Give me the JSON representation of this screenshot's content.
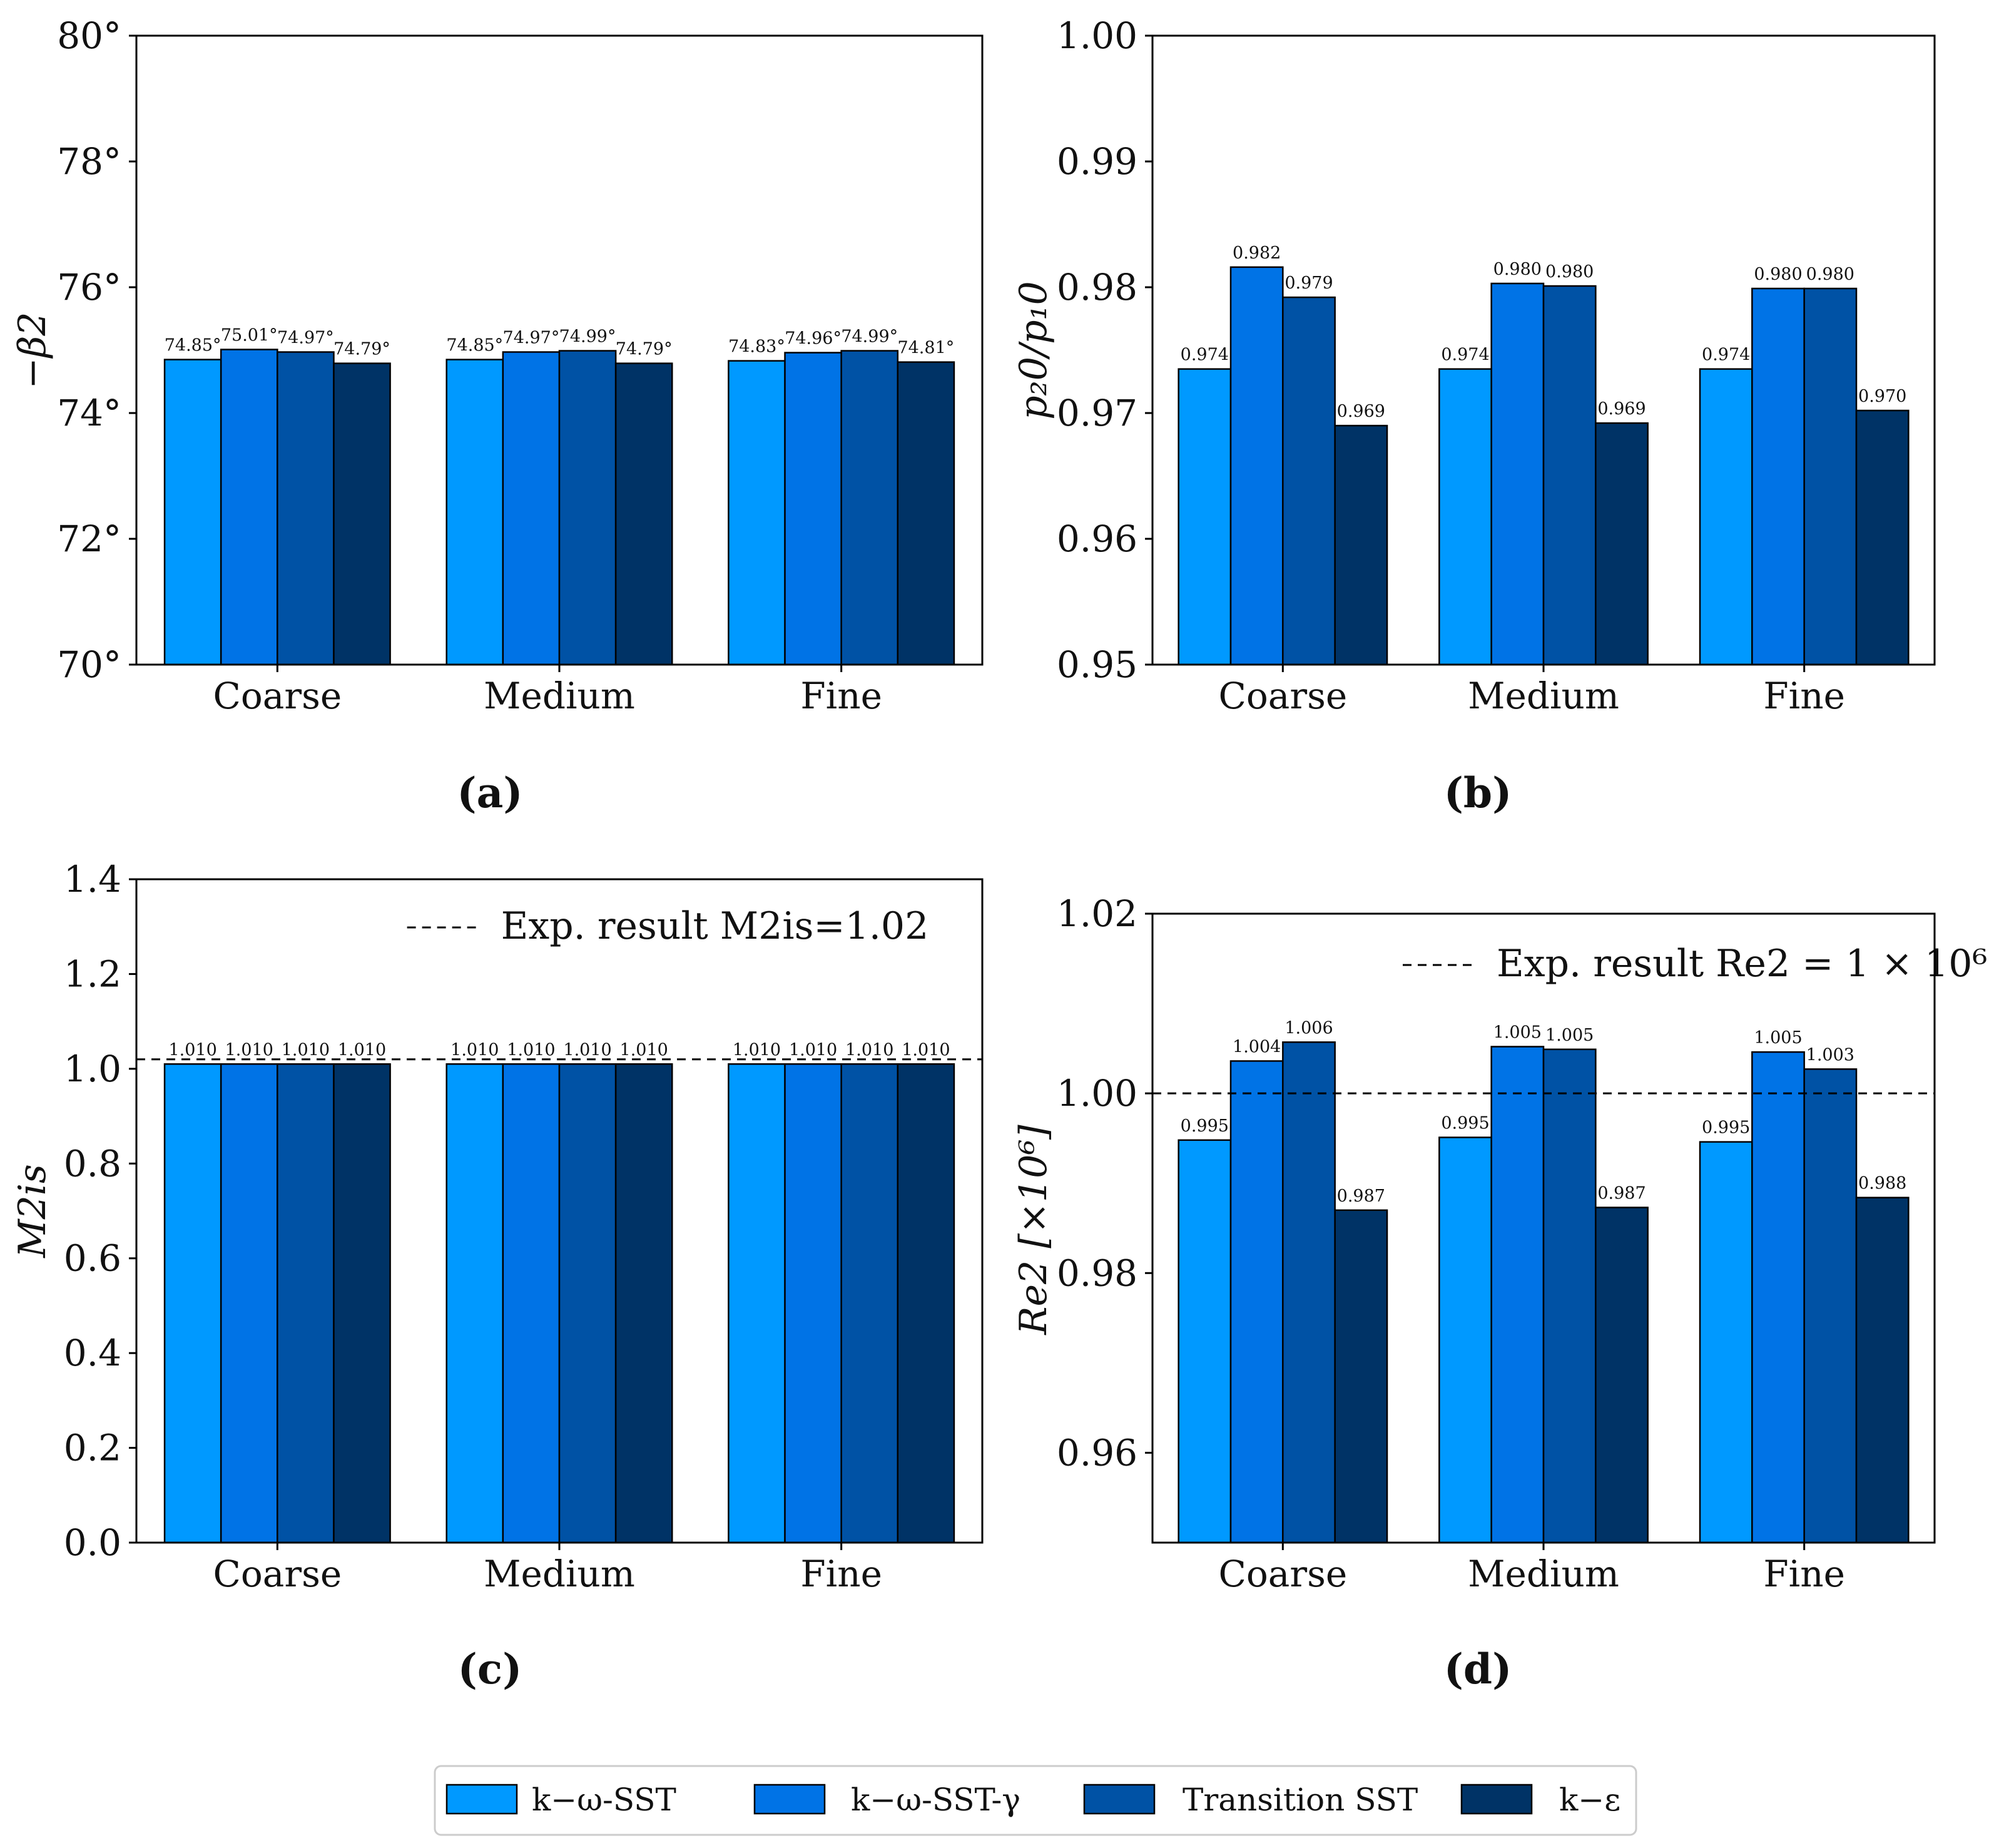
{
  "colors": [
    "#0099ff",
    "#0073e6",
    "#0052a5",
    "#003366"
  ],
  "legend": {
    "entries": [
      "k−ω-SST",
      "k−ω-SST-γ",
      "Transition SST",
      "k−ε"
    ]
  },
  "chart_data": [
    {
      "id": "a",
      "type": "bar",
      "sublabel": "(a)",
      "ylabel": "−β2",
      "categories": [
        "Coarse",
        "Medium",
        "Fine"
      ],
      "ylim": [
        70,
        80
      ],
      "yticks": [
        70,
        72,
        74,
        76,
        78,
        80
      ],
      "ytick_labels": [
        "70°",
        "72°",
        "74°",
        "76°",
        "78°",
        "80°"
      ],
      "series": [
        {
          "name": "k−ω-SST",
          "values": [
            74.85,
            74.85,
            74.83
          ],
          "labels": [
            "74.85°",
            "74.85°",
            "74.83°"
          ]
        },
        {
          "name": "k−ω-SST-γ",
          "values": [
            75.01,
            74.97,
            74.96
          ],
          "labels": [
            "75.01°",
            "74.97°",
            "74.96°"
          ]
        },
        {
          "name": "Transition SST",
          "values": [
            74.97,
            74.99,
            74.99
          ],
          "labels": [
            "74.97°",
            "74.99°",
            "74.99°"
          ]
        },
        {
          "name": "k−ε",
          "values": [
            74.79,
            74.79,
            74.81
          ],
          "labels": [
            "74.79°",
            "74.79°",
            "74.81°"
          ]
        }
      ]
    },
    {
      "id": "b",
      "type": "bar",
      "sublabel": "(b)",
      "ylabel": "p₂0/p₁0",
      "categories": [
        "Coarse",
        "Medium",
        "Fine"
      ],
      "ylim": [
        0.95,
        1.0
      ],
      "yticks": [
        0.95,
        0.96,
        0.97,
        0.98,
        0.99,
        1.0
      ],
      "ytick_labels": [
        "0.95",
        "0.96",
        "0.97",
        "0.98",
        "0.99",
        "1.00"
      ],
      "series": [
        {
          "name": "k−ω-SST",
          "values": [
            0.9735,
            0.9735,
            0.9735
          ],
          "labels": [
            "0.974",
            "0.974",
            "0.974"
          ]
        },
        {
          "name": "k−ω-SST-γ",
          "values": [
            0.9816,
            0.9803,
            0.9799
          ],
          "labels": [
            "0.982",
            "0.980",
            "0.980"
          ]
        },
        {
          "name": "Transition SST",
          "values": [
            0.9792,
            0.9801,
            0.9799
          ],
          "labels": [
            "0.979",
            "0.980",
            "0.980"
          ]
        },
        {
          "name": "k−ε",
          "values": [
            0.969,
            0.9692,
            0.9702
          ],
          "labels": [
            "0.969",
            "0.969",
            "0.970"
          ]
        }
      ]
    },
    {
      "id": "c",
      "type": "bar",
      "sublabel": "(c)",
      "ylabel": "M2is",
      "categories": [
        "Coarse",
        "Medium",
        "Fine"
      ],
      "ylim": [
        0.0,
        1.4
      ],
      "yticks": [
        0.0,
        0.2,
        0.4,
        0.6,
        0.8,
        1.0,
        1.2,
        1.4
      ],
      "ytick_labels": [
        "0.0",
        "0.2",
        "0.4",
        "0.6",
        "0.8",
        "1.0",
        "1.2",
        "1.4"
      ],
      "reference": {
        "value": 1.02,
        "label": "Exp. result M2is=1.02"
      },
      "series": [
        {
          "name": "k−ω-SST",
          "values": [
            1.01,
            1.01,
            1.01
          ],
          "labels": [
            "1.010",
            "1.010",
            "1.010"
          ]
        },
        {
          "name": "k−ω-SST-γ",
          "values": [
            1.01,
            1.01,
            1.01
          ],
          "labels": [
            "1.010",
            "1.010",
            "1.010"
          ]
        },
        {
          "name": "Transition SST",
          "values": [
            1.01,
            1.01,
            1.01
          ],
          "labels": [
            "1.010",
            "1.010",
            "1.010"
          ]
        },
        {
          "name": "k−ε",
          "values": [
            1.01,
            1.01,
            1.01
          ],
          "labels": [
            "1.010",
            "1.010",
            "1.010"
          ]
        }
      ]
    },
    {
      "id": "d",
      "type": "bar",
      "sublabel": "(d)",
      "ylabel": "Re2 [×10⁶]",
      "categories": [
        "Coarse",
        "Medium",
        "Fine"
      ],
      "ylim": [
        0.95,
        1.02
      ],
      "yticks": [
        0.96,
        0.98,
        1.0,
        1.02
      ],
      "ytick_labels": [
        "0.96",
        "0.98",
        "1.00",
        "1.02"
      ],
      "reference": {
        "value": 1.0,
        "label": "Exp. result Re2 = 1 × 10⁶"
      },
      "series": [
        {
          "name": "k−ω-SST",
          "values": [
            0.9948,
            0.9951,
            0.9946
          ],
          "labels": [
            "0.995",
            "0.995",
            "0.995"
          ]
        },
        {
          "name": "k−ω-SST-γ",
          "values": [
            1.0036,
            1.0052,
            1.0046
          ],
          "labels": [
            "1.004",
            "1.005",
            "1.005"
          ]
        },
        {
          "name": "Transition SST",
          "values": [
            1.0057,
            1.0049,
            1.0027
          ],
          "labels": [
            "1.006",
            "1.005",
            "1.003"
          ]
        },
        {
          "name": "k−ε",
          "values": [
            0.987,
            0.9873,
            0.9884
          ],
          "labels": [
            "0.987",
            "0.987",
            "0.988"
          ]
        }
      ]
    }
  ]
}
